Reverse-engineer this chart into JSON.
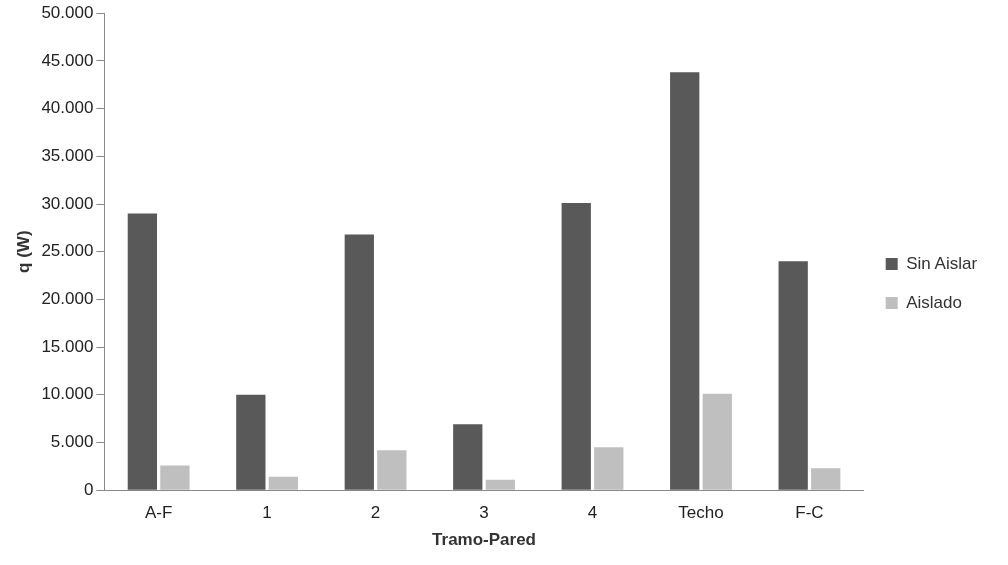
{
  "chart_data": {
    "type": "bar",
    "xlabel": "Tramo-Pared",
    "ylabel": "q (W)",
    "categories": [
      "A-F",
      "1",
      "2",
      "3",
      "4",
      "Techo",
      "F-C"
    ],
    "series": [
      {
        "name": "Sin Aislar",
        "color": "#595959",
        "values": [
          29000,
          10000,
          26800,
          6900,
          30100,
          43800,
          24000
        ]
      },
      {
        "name": "Aislado",
        "color": "#bfbfbf",
        "values": [
          2600,
          1400,
          4200,
          1100,
          4500,
          10100,
          2300
        ]
      }
    ],
    "ylim": [
      0,
      50000
    ],
    "yticks": [
      {
        "value": 0,
        "label": "0"
      },
      {
        "value": 5000,
        "label": "5.000"
      },
      {
        "value": 10000,
        "label": "10.000"
      },
      {
        "value": 15000,
        "label": "15.000"
      },
      {
        "value": 20000,
        "label": "20.000"
      },
      {
        "value": 25000,
        "label": "25.000"
      },
      {
        "value": 30000,
        "label": "30.000"
      },
      {
        "value": 35000,
        "label": "35.000"
      },
      {
        "value": 40000,
        "label": "40.000"
      },
      {
        "value": 45000,
        "label": "45.000"
      },
      {
        "value": 50000,
        "label": "50.000"
      }
    ],
    "grid": false,
    "legend": "right"
  }
}
